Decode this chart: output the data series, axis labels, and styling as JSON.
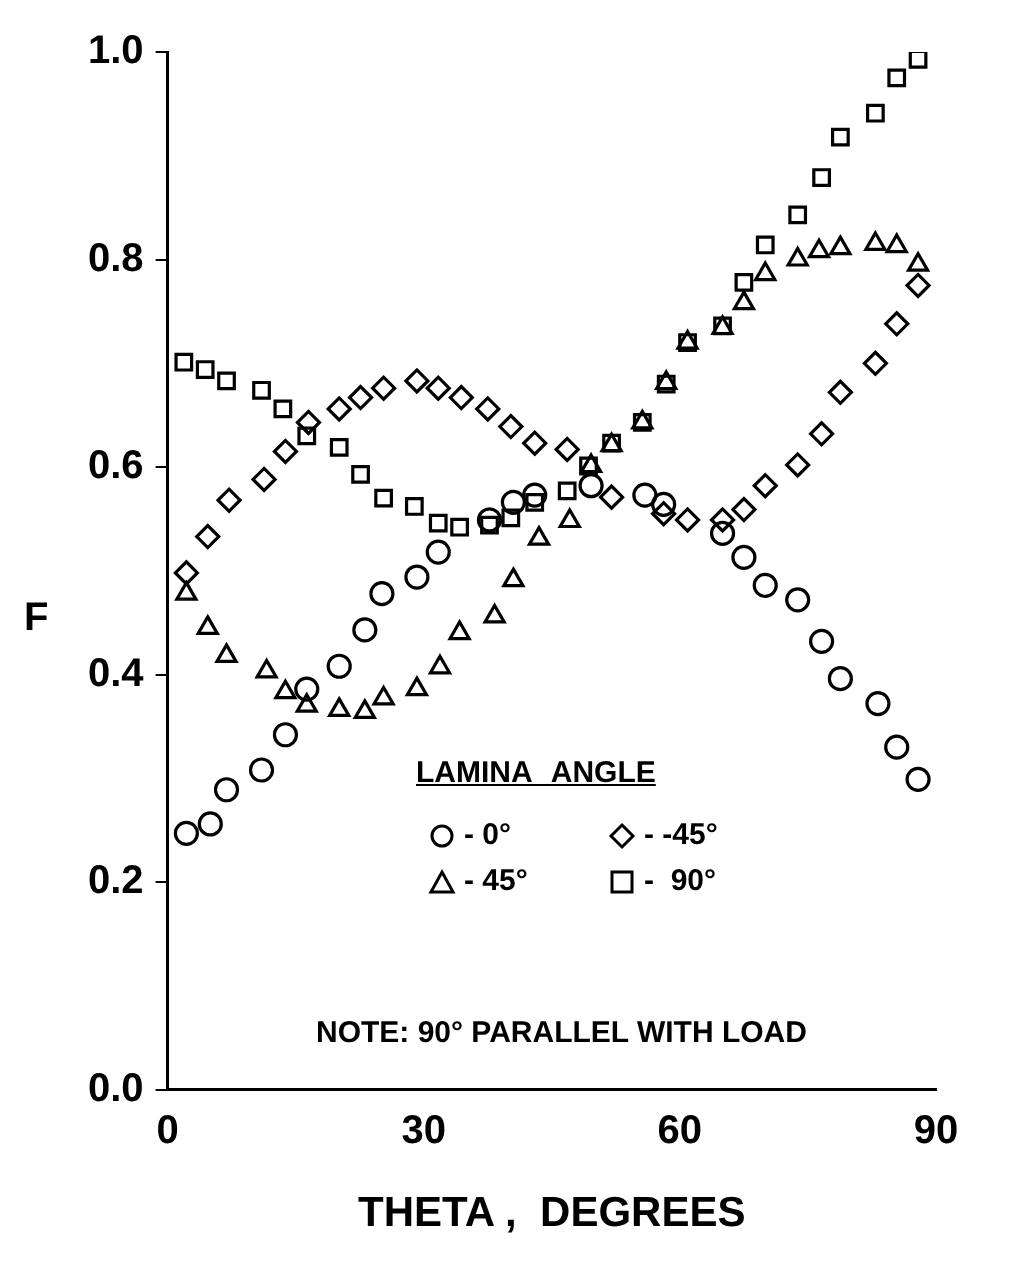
{
  "chart_data": {
    "type": "scatter",
    "xlabel": "THETA ,  DEGREES",
    "ylabel": "F",
    "legend_title": "LAMINA ANGLE",
    "legend": "right",
    "grid": false,
    "xlim": [
      0,
      90
    ],
    "xticks": [
      0,
      30,
      60,
      90
    ],
    "ylim": [
      0,
      1
    ],
    "yticks": [
      {
        "value": 0,
        "label": "0.0"
      },
      {
        "value": 0.2,
        "label": "0.2"
      },
      {
        "value": 0.4,
        "label": "0.4"
      },
      {
        "value": 0.6,
        "label": "0.6"
      },
      {
        "value": 0.8,
        "label": "0.8"
      },
      {
        "value": 1,
        "label": "1.0"
      }
    ],
    "annotations": [
      "NOTE: 90° PARALLEL WITH LOAD"
    ],
    "series": [
      {
        "name": "- 0°",
        "color": "#000000",
        "marker": "circle",
        "x": [
          2.2,
          5,
          6.9,
          11,
          13.8,
          16.3,
          20.1,
          23.1,
          25.1,
          29.2,
          31.7,
          37.7,
          40.5,
          43,
          49.6,
          55.9,
          58.1,
          65,
          67.5,
          70,
          73.8,
          76.6,
          78.8,
          83.2,
          85.4,
          87.9
        ],
        "values": [
          0.247,
          0.256,
          0.289,
          0.308,
          0.342,
          0.386,
          0.408,
          0.443,
          0.478,
          0.494,
          0.518,
          0.549,
          0.566,
          0.573,
          0.582,
          0.573,
          0.564,
          0.536,
          0.513,
          0.486,
          0.472,
          0.432,
          0.396,
          0.372,
          0.33,
          0.299
        ]
      },
      {
        "name": "- -45°",
        "color": "#000000",
        "marker": "diamond",
        "x": [
          2.2,
          4.7,
          7.2,
          11.3,
          13.8,
          16.5,
          20.1,
          22.6,
          25.3,
          29.2,
          31.7,
          34.4,
          37.5,
          40.2,
          43,
          46.8,
          52,
          58.1,
          60.9,
          65,
          67.5,
          70,
          73.8,
          76.6,
          78.8,
          82.9,
          85.4,
          87.9
        ],
        "values": [
          0.498,
          0.533,
          0.568,
          0.588,
          0.615,
          0.643,
          0.656,
          0.667,
          0.676,
          0.683,
          0.676,
          0.667,
          0.656,
          0.639,
          0.623,
          0.617,
          0.571,
          0.555,
          0.549,
          0.549,
          0.559,
          0.582,
          0.602,
          0.632,
          0.672,
          0.7,
          0.738,
          0.775
        ]
      },
      {
        "name": "- 45°",
        "color": "#000000",
        "marker": "triangle",
        "x": [
          2.2,
          4.7,
          6.9,
          11.6,
          13.8,
          16.3,
          20.1,
          23.1,
          25.3,
          29.2,
          31.9,
          34.2,
          38.3,
          40.5,
          43.5,
          47.1,
          49.6,
          52,
          55.6,
          58.4,
          60.9,
          65,
          67.5,
          70,
          73.8,
          76.3,
          78.8,
          82.9,
          85.4,
          87.9
        ],
        "values": [
          0.478,
          0.445,
          0.418,
          0.403,
          0.383,
          0.37,
          0.366,
          0.364,
          0.377,
          0.386,
          0.407,
          0.44,
          0.456,
          0.491,
          0.531,
          0.548,
          0.601,
          0.621,
          0.643,
          0.681,
          0.72,
          0.734,
          0.758,
          0.786,
          0.8,
          0.808,
          0.811,
          0.815,
          0.813,
          0.795
        ]
      },
      {
        "name": "-  90°",
        "color": "#000000",
        "marker": "square",
        "x": [
          1.9,
          4.4,
          6.9,
          11,
          13.5,
          16.3,
          20.1,
          22.6,
          25.3,
          28.9,
          31.7,
          34.2,
          37.7,
          40.2,
          43,
          46.8,
          49.3,
          52,
          55.6,
          58.4,
          60.9,
          65,
          67.5,
          70,
          73.8,
          76.6,
          78.8,
          82.9,
          85.4,
          87.9
        ],
        "values": [
          0.701,
          0.694,
          0.683,
          0.674,
          0.656,
          0.63,
          0.619,
          0.593,
          0.57,
          0.562,
          0.546,
          0.542,
          0.544,
          0.551,
          0.566,
          0.577,
          0.601,
          0.623,
          0.643,
          0.68,
          0.72,
          0.736,
          0.778,
          0.814,
          0.843,
          0.879,
          0.918,
          0.941,
          0.975,
          0.993
        ]
      }
    ]
  }
}
